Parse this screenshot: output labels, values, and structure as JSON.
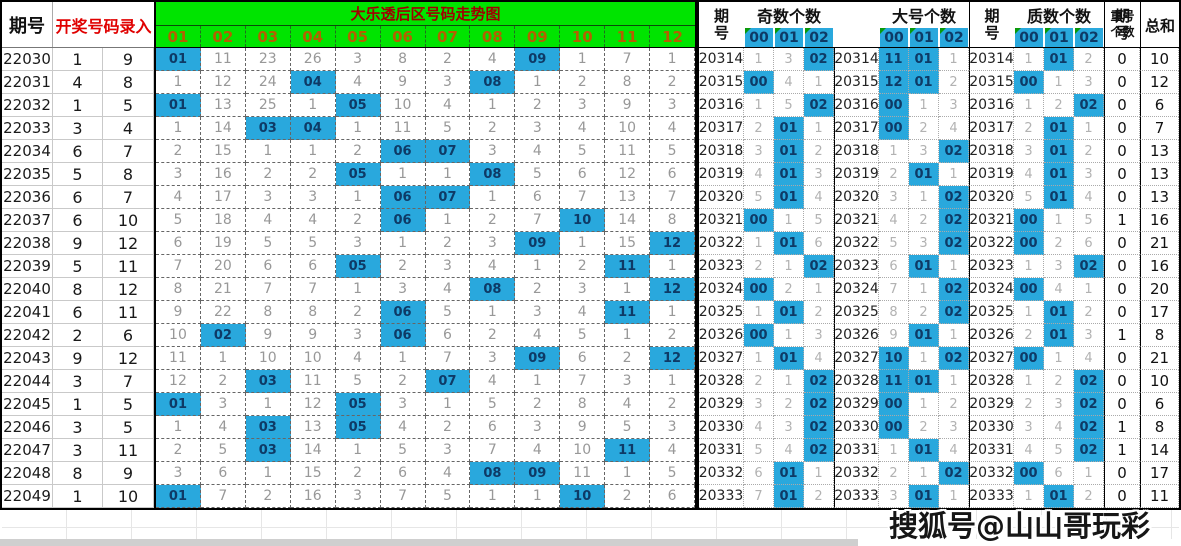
{
  "app": {
    "watermark": "搜狐号@山山哥玩彩"
  },
  "colors": {
    "green": "#00e400",
    "blue": "#29a8dd",
    "titlered": "#a00000",
    "orange": "#b36000",
    "navy": "#0e3a66"
  },
  "left_table": {
    "period_header": "期号",
    "input_header": "开奖号码录入"
  },
  "trend": {
    "title": "大乐透后区号码走势图",
    "columns": [
      "01",
      "02",
      "03",
      "04",
      "05",
      "06",
      "07",
      "08",
      "09",
      "10",
      "11",
      "12"
    ]
  },
  "rows": [
    {
      "period": "22030",
      "n1": 1,
      "n2": 9,
      "cells": [
        "01",
        "11",
        "23",
        "26",
        "3",
        "8",
        "2",
        "4",
        "09",
        "1",
        "7",
        "1"
      ]
    },
    {
      "period": "22031",
      "n1": 4,
      "n2": 8,
      "cells": [
        "1",
        "12",
        "24",
        "04",
        "4",
        "9",
        "3",
        "08",
        "1",
        "2",
        "8",
        "2"
      ]
    },
    {
      "period": "22032",
      "n1": 1,
      "n2": 5,
      "cells": [
        "01",
        "13",
        "25",
        "1",
        "05",
        "10",
        "4",
        "1",
        "2",
        "3",
        "9",
        "3"
      ]
    },
    {
      "period": "22033",
      "n1": 3,
      "n2": 4,
      "cells": [
        "1",
        "14",
        "03",
        "04",
        "1",
        "11",
        "5",
        "2",
        "3",
        "4",
        "10",
        "4"
      ]
    },
    {
      "period": "22034",
      "n1": 6,
      "n2": 7,
      "cells": [
        "2",
        "15",
        "1",
        "1",
        "2",
        "06",
        "07",
        "3",
        "4",
        "5",
        "11",
        "5"
      ]
    },
    {
      "period": "22035",
      "n1": 5,
      "n2": 8,
      "cells": [
        "3",
        "16",
        "2",
        "2",
        "05",
        "1",
        "1",
        "08",
        "5",
        "6",
        "12",
        "6"
      ]
    },
    {
      "period": "22036",
      "n1": 6,
      "n2": 7,
      "cells": [
        "4",
        "17",
        "3",
        "3",
        "1",
        "06",
        "07",
        "1",
        "6",
        "7",
        "13",
        "7"
      ]
    },
    {
      "period": "22037",
      "n1": 6,
      "n2": 10,
      "cells": [
        "5",
        "18",
        "4",
        "4",
        "2",
        "06",
        "1",
        "2",
        "7",
        "10",
        "14",
        "8"
      ]
    },
    {
      "period": "22038",
      "n1": 9,
      "n2": 12,
      "cells": [
        "6",
        "19",
        "5",
        "5",
        "3",
        "1",
        "2",
        "3",
        "09",
        "1",
        "15",
        "12"
      ]
    },
    {
      "period": "22039",
      "n1": 5,
      "n2": 11,
      "cells": [
        "7",
        "20",
        "6",
        "6",
        "05",
        "2",
        "3",
        "4",
        "1",
        "2",
        "11",
        "1"
      ]
    },
    {
      "period": "22040",
      "n1": 8,
      "n2": 12,
      "cells": [
        "8",
        "21",
        "7",
        "7",
        "1",
        "3",
        "4",
        "08",
        "2",
        "3",
        "1",
        "12"
      ]
    },
    {
      "period": "22041",
      "n1": 6,
      "n2": 11,
      "cells": [
        "9",
        "22",
        "8",
        "8",
        "2",
        "06",
        "5",
        "1",
        "3",
        "4",
        "11",
        "1"
      ]
    },
    {
      "period": "22042",
      "n1": 2,
      "n2": 6,
      "cells": [
        "10",
        "02",
        "9",
        "9",
        "3",
        "06",
        "6",
        "2",
        "4",
        "5",
        "1",
        "2"
      ]
    },
    {
      "period": "22043",
      "n1": 9,
      "n2": 12,
      "cells": [
        "11",
        "1",
        "10",
        "10",
        "4",
        "1",
        "7",
        "3",
        "09",
        "6",
        "2",
        "12"
      ]
    },
    {
      "period": "22044",
      "n1": 3,
      "n2": 7,
      "cells": [
        "12",
        "2",
        "03",
        "11",
        "5",
        "2",
        "07",
        "4",
        "1",
        "7",
        "3",
        "1"
      ]
    },
    {
      "period": "22045",
      "n1": 1,
      "n2": 5,
      "cells": [
        "01",
        "3",
        "1",
        "12",
        "05",
        "3",
        "1",
        "5",
        "2",
        "8",
        "4",
        "2"
      ]
    },
    {
      "period": "22046",
      "n1": 3,
      "n2": 5,
      "cells": [
        "1",
        "4",
        "03",
        "13",
        "05",
        "4",
        "2",
        "6",
        "3",
        "9",
        "5",
        "3"
      ]
    },
    {
      "period": "22047",
      "n1": 3,
      "n2": 11,
      "cells": [
        "2",
        "5",
        "03",
        "14",
        "1",
        "5",
        "3",
        "7",
        "4",
        "10",
        "11",
        "4"
      ]
    },
    {
      "period": "22048",
      "n1": 8,
      "n2": 9,
      "cells": [
        "3",
        "6",
        "1",
        "15",
        "2",
        "6",
        "4",
        "08",
        "09",
        "11",
        "1",
        "5"
      ]
    },
    {
      "period": "22049",
      "n1": 1,
      "n2": 10,
      "cells": [
        "01",
        "7",
        "2",
        "16",
        "3",
        "7",
        "5",
        "1",
        "1",
        "10",
        "2",
        "6"
      ]
    }
  ],
  "analysis": {
    "period_header": "期号",
    "groups": [
      {
        "title": "奇数个数"
      },
      {
        "title": "大号个数"
      },
      {
        "title": "质数个数"
      }
    ],
    "count_cols": [
      "00",
      "01",
      "02"
    ],
    "repeat_header": "重号个数",
    "sum_header": "总和",
    "rows": [
      {
        "period": "20314",
        "odd": [
          "1",
          "3",
          "02"
        ],
        "big": [
          "11",
          "01",
          "1"
        ],
        "prime": [
          "1",
          "01",
          "2"
        ],
        "repeat": "0",
        "sum": "10"
      },
      {
        "period": "20315",
        "odd": [
          "00",
          "4",
          "1"
        ],
        "big": [
          "12",
          "01",
          "2"
        ],
        "prime": [
          "00",
          "1",
          "3"
        ],
        "repeat": "0",
        "sum": "12"
      },
      {
        "period": "20316",
        "odd": [
          "1",
          "5",
          "02"
        ],
        "big": [
          "00",
          "1",
          "3"
        ],
        "prime": [
          "1",
          "2",
          "02"
        ],
        "repeat": "0",
        "sum": "6"
      },
      {
        "period": "20317",
        "odd": [
          "2",
          "01",
          "1"
        ],
        "big": [
          "00",
          "2",
          "4"
        ],
        "prime": [
          "2",
          "01",
          "1"
        ],
        "repeat": "0",
        "sum": "7"
      },
      {
        "period": "20318",
        "odd": [
          "3",
          "01",
          "2"
        ],
        "big": [
          "1",
          "3",
          "02"
        ],
        "prime": [
          "3",
          "01",
          "2"
        ],
        "repeat": "0",
        "sum": "13"
      },
      {
        "period": "20319",
        "odd": [
          "4",
          "01",
          "3"
        ],
        "big": [
          "2",
          "01",
          "1"
        ],
        "prime": [
          "4",
          "01",
          "3"
        ],
        "repeat": "0",
        "sum": "13"
      },
      {
        "period": "20320",
        "odd": [
          "5",
          "01",
          "4"
        ],
        "big": [
          "3",
          "1",
          "02"
        ],
        "prime": [
          "5",
          "01",
          "4"
        ],
        "repeat": "0",
        "sum": "13"
      },
      {
        "period": "20321",
        "odd": [
          "00",
          "1",
          "5"
        ],
        "big": [
          "4",
          "2",
          "02"
        ],
        "prime": [
          "00",
          "1",
          "5"
        ],
        "repeat": "1",
        "sum": "16"
      },
      {
        "period": "20322",
        "odd": [
          "1",
          "01",
          "6"
        ],
        "big": [
          "5",
          "3",
          "02"
        ],
        "prime": [
          "00",
          "2",
          "6"
        ],
        "repeat": "0",
        "sum": "21"
      },
      {
        "period": "20323",
        "odd": [
          "2",
          "1",
          "02"
        ],
        "big": [
          "6",
          "01",
          "1"
        ],
        "prime": [
          "1",
          "3",
          "02"
        ],
        "repeat": "0",
        "sum": "16"
      },
      {
        "period": "20324",
        "odd": [
          "00",
          "2",
          "1"
        ],
        "big": [
          "7",
          "1",
          "02"
        ],
        "prime": [
          "00",
          "4",
          "1"
        ],
        "repeat": "0",
        "sum": "20"
      },
      {
        "period": "20325",
        "odd": [
          "1",
          "01",
          "2"
        ],
        "big": [
          "8",
          "2",
          "02"
        ],
        "prime": [
          "1",
          "01",
          "2"
        ],
        "repeat": "0",
        "sum": "17"
      },
      {
        "period": "20326",
        "odd": [
          "00",
          "1",
          "3"
        ],
        "big": [
          "9",
          "01",
          "1"
        ],
        "prime": [
          "2",
          "01",
          "3"
        ],
        "repeat": "1",
        "sum": "8"
      },
      {
        "period": "20327",
        "odd": [
          "1",
          "01",
          "4"
        ],
        "big": [
          "10",
          "1",
          "02"
        ],
        "prime": [
          "00",
          "1",
          "4"
        ],
        "repeat": "0",
        "sum": "21"
      },
      {
        "period": "20328",
        "odd": [
          "2",
          "1",
          "02"
        ],
        "big": [
          "11",
          "01",
          "1"
        ],
        "prime": [
          "1",
          "2",
          "02"
        ],
        "repeat": "0",
        "sum": "10"
      },
      {
        "period": "20329",
        "odd": [
          "3",
          "2",
          "02"
        ],
        "big": [
          "00",
          "1",
          "2"
        ],
        "prime": [
          "2",
          "3",
          "02"
        ],
        "repeat": "0",
        "sum": "6"
      },
      {
        "period": "20330",
        "odd": [
          "4",
          "3",
          "02"
        ],
        "big": [
          "00",
          "2",
          "3"
        ],
        "prime": [
          "3",
          "4",
          "02"
        ],
        "repeat": "1",
        "sum": "8"
      },
      {
        "period": "20331",
        "odd": [
          "5",
          "4",
          "02"
        ],
        "big": [
          "1",
          "01",
          "4"
        ],
        "prime": [
          "4",
          "5",
          "02"
        ],
        "repeat": "1",
        "sum": "14"
      },
      {
        "period": "20332",
        "odd": [
          "6",
          "01",
          "1"
        ],
        "big": [
          "2",
          "1",
          "02"
        ],
        "prime": [
          "00",
          "6",
          "1"
        ],
        "repeat": "0",
        "sum": "17"
      },
      {
        "period": "20333",
        "odd": [
          "7",
          "01",
          "2"
        ],
        "big": [
          "3",
          "01",
          "1"
        ],
        "prime": [
          "1",
          "01",
          "2"
        ],
        "repeat": "0",
        "sum": "11"
      }
    ]
  }
}
